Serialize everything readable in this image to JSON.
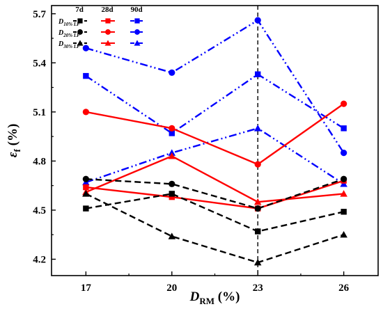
{
  "chart_data": {
    "type": "line",
    "xlabel": {
      "main": "D",
      "sub": "RM",
      "unit": " (%)"
    },
    "ylabel": {
      "main": "ε",
      "sub": "f",
      "unit": " (%)"
    },
    "x": [
      17,
      20,
      23,
      26
    ],
    "xlim": [
      15.8,
      27.2
    ],
    "ylim": [
      4.1,
      5.75
    ],
    "xticks": [
      "17",
      "20",
      "23",
      "26"
    ],
    "yticks": [
      "4.2",
      "4.5",
      "4.8",
      "5.1",
      "5.4",
      "5.7"
    ],
    "vline_x": 23,
    "legend": {
      "placement": "top-left",
      "columns": [
        "7d",
        "28d",
        "90d"
      ],
      "rows": [
        {
          "main": "D",
          "sub": "10% LF",
          "marker": "square"
        },
        {
          "main": "D",
          "sub": "20% LF",
          "marker": "circle"
        },
        {
          "main": "D",
          "sub": "30% LF",
          "marker": "triangle"
        }
      ]
    },
    "series": [
      {
        "age": "7d",
        "mix": "D10% LF",
        "color": "#000000",
        "dash": "dash",
        "marker": "square",
        "values": [
          4.51,
          4.6,
          4.37,
          4.49
        ]
      },
      {
        "age": "7d",
        "mix": "D20% LF",
        "color": "#000000",
        "dash": "dash",
        "marker": "circle",
        "values": [
          4.69,
          4.66,
          4.51,
          4.69
        ]
      },
      {
        "age": "7d",
        "mix": "D30% LF",
        "color": "#000000",
        "dash": "dash",
        "marker": "triangle",
        "values": [
          4.6,
          4.34,
          4.18,
          4.35
        ]
      },
      {
        "age": "28d",
        "mix": "D10% LF",
        "color": "#ff0000",
        "dash": "solid",
        "marker": "square",
        "values": [
          4.64,
          4.58,
          4.51,
          4.68
        ]
      },
      {
        "age": "28d",
        "mix": "D20% LF",
        "color": "#ff0000",
        "dash": "solid",
        "marker": "circle",
        "values": [
          5.1,
          5.0,
          4.78,
          5.15
        ]
      },
      {
        "age": "28d",
        "mix": "D30% LF",
        "color": "#ff0000",
        "dash": "solid",
        "marker": "triangle",
        "values": [
          4.61,
          4.83,
          4.55,
          4.6
        ]
      },
      {
        "age": "90d",
        "mix": "D10% LF",
        "color": "#0000ff",
        "dash": "dashdot",
        "marker": "square",
        "values": [
          5.32,
          4.97,
          5.33,
          5.0
        ]
      },
      {
        "age": "90d",
        "mix": "D20% LF",
        "color": "#0000ff",
        "dash": "dashdot",
        "marker": "circle",
        "values": [
          5.49,
          5.34,
          5.66,
          4.85
        ]
      },
      {
        "age": "90d",
        "mix": "D30% LF",
        "color": "#0000ff",
        "dash": "dashdot",
        "marker": "triangle",
        "values": [
          4.67,
          4.85,
          5.0,
          4.66
        ]
      }
    ]
  }
}
